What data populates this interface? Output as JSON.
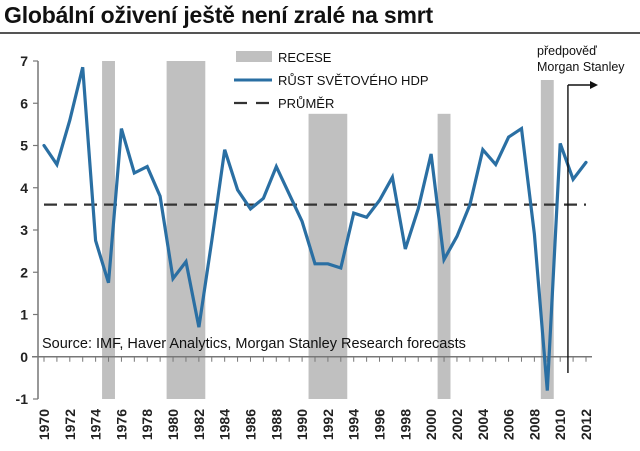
{
  "chart_data": {
    "type": "line",
    "title": "Globální oživení ještě není zralé na smrt",
    "xlabel": "",
    "ylabel": "",
    "ylim": [
      -1,
      7
    ],
    "xlim": [
      1970,
      2012
    ],
    "yticks": [
      -1,
      0,
      1,
      2,
      3,
      4,
      5,
      6,
      7
    ],
    "xticks": [
      1970,
      1972,
      1974,
      1976,
      1978,
      1980,
      1982,
      1984,
      1986,
      1988,
      1990,
      1992,
      1994,
      1996,
      1998,
      2000,
      2002,
      2004,
      2006,
      2008,
      2010,
      2012
    ],
    "grid": false,
    "legend": {
      "placement": "top-center",
      "entries": [
        {
          "label": "RECESE",
          "kind": "bar",
          "color": "#c0c0c0"
        },
        {
          "label": "RŮST SVĚTOVÉHO HDP",
          "kind": "line",
          "color": "#2a6fa3"
        },
        {
          "label": "PRŮMĚR",
          "kind": "dashed-line",
          "color": "#333333"
        }
      ]
    },
    "series": [
      {
        "name": "RŮST SVĚTOVÉHO HDP",
        "color": "#2a6fa3",
        "x": [
          1970,
          1971,
          1972,
          1973,
          1974,
          1975,
          1976,
          1977,
          1978,
          1979,
          1980,
          1981,
          1982,
          1983,
          1984,
          1985,
          1986,
          1987,
          1988,
          1989,
          1990,
          1991,
          1992,
          1993,
          1994,
          1995,
          1996,
          1997,
          1998,
          1999,
          2000,
          2001,
          2002,
          2003,
          2004,
          2005,
          2006,
          2007,
          2008,
          2009,
          2010,
          2011,
          2012
        ],
        "values": [
          5.0,
          4.55,
          5.6,
          6.85,
          2.75,
          1.75,
          5.4,
          4.35,
          4.5,
          3.8,
          1.85,
          2.25,
          0.7,
          2.75,
          4.9,
          3.95,
          3.5,
          3.75,
          4.5,
          3.85,
          3.2,
          2.2,
          2.2,
          2.1,
          3.4,
          3.3,
          3.7,
          4.25,
          2.55,
          3.5,
          4.8,
          2.3,
          2.85,
          3.6,
          4.9,
          4.55,
          5.2,
          5.4,
          2.9,
          -0.8,
          5.05,
          4.2,
          4.6
        ]
      }
    ],
    "average": {
      "name": "PRŮMĚR",
      "value": 3.6,
      "color": "#333333"
    },
    "recessions": [
      {
        "start": 1974.5,
        "end": 1975.5,
        "top": 7.0
      },
      {
        "start": 1979.5,
        "end": 1982.5,
        "top": 7.0
      },
      {
        "start": 1990.5,
        "end": 1993.5,
        "top": 5.75
      },
      {
        "start": 2000.5,
        "end": 2001.5,
        "top": 5.75
      },
      {
        "start": 2008.5,
        "end": 2009.5,
        "top": 6.55
      }
    ],
    "recession_color": "#c0c0c0",
    "forecast": {
      "start_year": 2010.6,
      "label_line1": "předpověď",
      "label_line2": "Morgan Stanley"
    },
    "source": "Source: IMF, Haver Analytics, Morgan Stanley Research forecasts"
  }
}
